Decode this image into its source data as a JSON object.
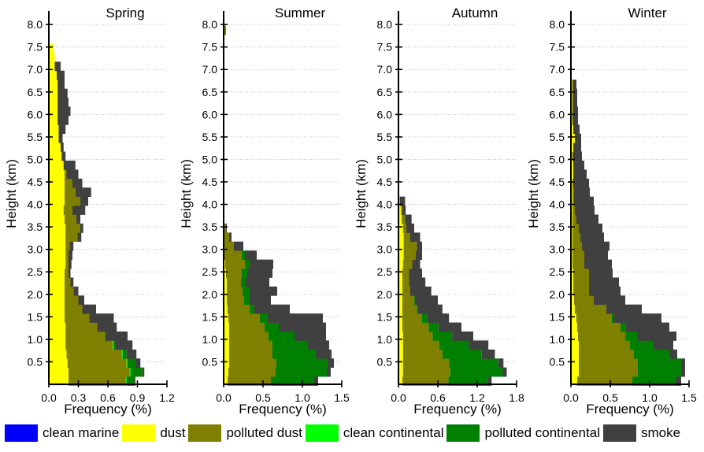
{
  "chart_data": {
    "type": "area",
    "stack_order": [
      "clean marine",
      "dust",
      "polluted dust",
      "clean continental",
      "polluted continental",
      "smoke"
    ],
    "ylabel": "Height (km)",
    "xlabel": "Frequency (%)",
    "ylim": [
      0,
      8.3
    ],
    "yticks": [
      "0.5",
      "1.0",
      "1.5",
      "2.0",
      "2.5",
      "3.0",
      "3.5",
      "4.0",
      "4.5",
      "5.0",
      "5.5",
      "6.0",
      "6.5",
      "7.0",
      "7.5",
      "8.0"
    ],
    "grid": "dotted horizontal at y ticks",
    "legend_position": "bottom",
    "legend": [
      {
        "name": "clean marine",
        "color": "#0000ff"
      },
      {
        "name": "dust",
        "color": "#ffff00"
      },
      {
        "name": "polluted dust",
        "color": "#808000"
      },
      {
        "name": "clean continental",
        "color": "#00ff00"
      },
      {
        "name": "polluted continental",
        "color": "#008000"
      },
      {
        "name": "smoke",
        "color": "#404040"
      }
    ],
    "panels": [
      {
        "title": "Spring",
        "xlim": [
          0,
          1.2
        ],
        "xticks": [
          "0.0",
          "0.3",
          "0.6",
          "0.9",
          "1.2"
        ],
        "height": [
          0.1,
          0.3,
          0.5,
          0.7,
          0.9,
          1.1,
          1.3,
          1.5,
          1.7,
          1.9,
          2.1,
          2.3,
          2.5,
          2.7,
          2.9,
          3.1,
          3.3,
          3.5,
          3.7,
          3.9,
          4.1,
          4.3,
          4.5,
          4.7,
          4.9,
          5.1,
          5.3,
          5.5,
          5.7,
          5.9,
          6.1,
          6.3,
          6.5,
          6.7,
          6.9,
          7.1,
          7.3,
          7.5
        ],
        "series": [
          {
            "name": "dust",
            "values": [
              0.2,
              0.2,
              0.19,
              0.18,
              0.17,
              0.17,
              0.17,
              0.16,
              0.16,
              0.16,
              0.16,
              0.16,
              0.16,
              0.17,
              0.17,
              0.17,
              0.17,
              0.17,
              0.16,
              0.15,
              0.16,
              0.16,
              0.16,
              0.16,
              0.15,
              0.13,
              0.12,
              0.1,
              0.1,
              0.09,
              0.09,
              0.09,
              0.09,
              0.09,
              0.08,
              0.06,
              0.06,
              0.05
            ]
          },
          {
            "name": "polluted dust",
            "values": [
              0.58,
              0.62,
              0.6,
              0.56,
              0.48,
              0.4,
              0.32,
              0.25,
              0.18,
              0.14,
              0.09,
              0.06,
              0.04,
              0.03,
              0.03,
              0.04,
              0.12,
              0.15,
              0.12,
              0.09,
              0.16,
              0.11,
              0.08,
              0.02,
              0.0,
              0.0,
              0.0,
              0.0,
              0.0,
              0.0,
              0.0,
              0.0,
              0.0,
              0.0,
              0.0,
              0.0,
              0.0,
              0.0
            ]
          },
          {
            "name": "clean continental",
            "values": [
              0.01,
              0.01,
              0.01,
              0.01,
              0.01,
              0.0,
              0.0,
              0.0,
              0.0,
              0.0,
              0.0,
              0.0,
              0.0,
              0.0,
              0.0,
              0.0,
              0.0,
              0.0,
              0.0,
              0.0,
              0.0,
              0.0,
              0.0,
              0.0,
              0.0,
              0.0,
              0.0,
              0.0,
              0.0,
              0.0,
              0.0,
              0.0,
              0.0,
              0.0,
              0.0,
              0.0,
              0.0,
              0.0
            ]
          },
          {
            "name": "polluted continental",
            "values": [
              0.08,
              0.12,
              0.08,
              0.04,
              0.02,
              0.01,
              0.0,
              0.0,
              0.0,
              0.0,
              0.0,
              0.0,
              0.0,
              0.0,
              0.0,
              0.0,
              0.0,
              0.0,
              0.0,
              0.0,
              0.0,
              0.0,
              0.0,
              0.0,
              0.0,
              0.0,
              0.0,
              0.0,
              0.0,
              0.0,
              0.0,
              0.0,
              0.0,
              0.0,
              0.0,
              0.0,
              0.0,
              0.0
            ]
          },
          {
            "name": "smoke",
            "values": [
              0.01,
              0.02,
              0.05,
              0.1,
              0.17,
              0.22,
              0.2,
              0.25,
              0.14,
              0.06,
              0.05,
              0.03,
              0.02,
              0.03,
              0.04,
              0.04,
              0.04,
              0.03,
              0.04,
              0.13,
              0.08,
              0.16,
              0.1,
              0.12,
              0.12,
              0.04,
              0.03,
              0.04,
              0.07,
              0.11,
              0.13,
              0.11,
              0.1,
              0.07,
              0.08,
              0.06,
              0.0,
              0.0
            ]
          }
        ]
      },
      {
        "title": "Summer",
        "xlim": [
          0,
          1.5
        ],
        "xticks": [
          "0.0",
          "0.5",
          "1.0",
          "1.5"
        ],
        "height": [
          0.1,
          0.3,
          0.5,
          0.7,
          0.9,
          1.1,
          1.3,
          1.5,
          1.7,
          1.9,
          2.1,
          2.3,
          2.5,
          2.7,
          2.9,
          3.1,
          3.3,
          3.5,
          7.9
        ],
        "series": [
          {
            "name": "dust",
            "values": [
              0.05,
              0.06,
              0.07,
              0.07,
              0.07,
              0.07,
              0.07,
              0.06,
              0.05,
              0.04,
              0.04,
              0.04,
              0.03,
              0.02,
              0.01,
              0.01,
              0.01,
              0.01,
              0.01
            ]
          },
          {
            "name": "polluted dust",
            "values": [
              0.55,
              0.6,
              0.6,
              0.55,
              0.55,
              0.5,
              0.45,
              0.4,
              0.28,
              0.22,
              0.2,
              0.18,
              0.2,
              0.25,
              0.22,
              0.12,
              0.06,
              0.02,
              0.02
            ]
          },
          {
            "name": "clean continental",
            "values": [
              0.0,
              0.0,
              0.0,
              0.0,
              0.0,
              0.0,
              0.0,
              0.0,
              0.0,
              0.0,
              0.0,
              0.0,
              0.0,
              0.0,
              0.0,
              0.0,
              0.0,
              0.0,
              0.0
            ]
          },
          {
            "name": "polluted continental",
            "values": [
              0.55,
              0.65,
              0.65,
              0.55,
              0.45,
              0.33,
              0.18,
              0.1,
              0.06,
              0.07,
              0.09,
              0.06,
              0.07,
              0.06,
              0.04,
              0.0,
              0.0,
              0.0,
              0.0
            ]
          },
          {
            "name": "smoke",
            "values": [
              0.05,
              0.05,
              0.08,
              0.2,
              0.27,
              0.4,
              0.6,
              0.7,
              0.45,
              0.27,
              0.35,
              0.3,
              0.32,
              0.3,
              0.15,
              0.12,
              0.03,
              0.01,
              0.0
            ]
          }
        ]
      },
      {
        "title": "Autumn",
        "xlim": [
          0,
          1.8
        ],
        "xticks": [
          "0.0",
          "0.6",
          "1.2",
          "1.8"
        ],
        "height": [
          0.1,
          0.3,
          0.5,
          0.7,
          0.9,
          1.1,
          1.3,
          1.5,
          1.7,
          1.9,
          2.1,
          2.3,
          2.5,
          2.7,
          2.9,
          3.1,
          3.3,
          3.5,
          3.7,
          3.9,
          4.1
        ],
        "series": [
          {
            "name": "dust",
            "values": [
              0.06,
              0.07,
              0.07,
              0.07,
              0.07,
              0.07,
              0.06,
              0.06,
              0.06,
              0.06,
              0.06,
              0.06,
              0.06,
              0.07,
              0.08,
              0.08,
              0.08,
              0.07,
              0.05,
              0.04,
              0.02
            ]
          },
          {
            "name": "polluted dust",
            "values": [
              0.7,
              0.72,
              0.7,
              0.6,
              0.55,
              0.45,
              0.4,
              0.3,
              0.22,
              0.18,
              0.12,
              0.1,
              0.1,
              0.14,
              0.18,
              0.2,
              0.1,
              0.05,
              0.05,
              0.02,
              0.0
            ]
          },
          {
            "name": "clean continental",
            "values": [
              0.0,
              0.0,
              0.0,
              0.0,
              0.0,
              0.0,
              0.0,
              0.0,
              0.0,
              0.0,
              0.0,
              0.0,
              0.0,
              0.0,
              0.0,
              0.0,
              0.0,
              0.0,
              0.0,
              0.0,
              0.0
            ]
          },
          {
            "name": "polluted continental",
            "values": [
              0.6,
              0.8,
              0.75,
              0.6,
              0.45,
              0.3,
              0.15,
              0.08,
              0.02,
              0.01,
              0.0,
              0.0,
              0.0,
              0.0,
              0.0,
              0.0,
              0.0,
              0.0,
              0.0,
              0.0,
              0.0
            ]
          },
          {
            "name": "smoke",
            "values": [
              0.06,
              0.06,
              0.08,
              0.2,
              0.3,
              0.32,
              0.35,
              0.33,
              0.37,
              0.35,
              0.32,
              0.25,
              0.2,
              0.12,
              0.1,
              0.08,
              0.15,
              0.12,
              0.1,
              0.05,
              0.08
            ]
          }
        ]
      },
      {
        "title": "Winter",
        "xlim": [
          0,
          1.5
        ],
        "xticks": [
          "0.0",
          "0.5",
          "1.0",
          "1.5"
        ],
        "height": [
          0.1,
          0.3,
          0.5,
          0.7,
          0.9,
          1.1,
          1.3,
          1.5,
          1.7,
          1.9,
          2.1,
          2.3,
          2.5,
          2.7,
          2.9,
          3.1,
          3.3,
          3.5,
          3.7,
          3.9,
          4.1,
          4.3,
          4.5,
          4.7,
          4.9,
          5.1,
          5.3,
          5.5,
          5.7,
          5.9,
          6.1,
          6.3,
          6.5,
          6.7
        ],
        "series": [
          {
            "name": "dust",
            "values": [
              0.08,
              0.1,
              0.1,
              0.1,
              0.1,
              0.09,
              0.08,
              0.07,
              0.05,
              0.04,
              0.03,
              0.03,
              0.03,
              0.02,
              0.02,
              0.02,
              0.02,
              0.02,
              0.02,
              0.02,
              0.02,
              0.02,
              0.02,
              0.03,
              0.03,
              0.02,
              0.03,
              0.05,
              0.03,
              0.02,
              0.02,
              0.02,
              0.02,
              0.02
            ]
          },
          {
            "name": "polluted dust",
            "values": [
              0.7,
              0.75,
              0.75,
              0.7,
              0.65,
              0.6,
              0.55,
              0.45,
              0.4,
              0.25,
              0.2,
              0.2,
              0.2,
              0.15,
              0.15,
              0.12,
              0.1,
              0.08,
              0.05,
              0.03,
              0.02,
              0.02,
              0.01,
              0.0,
              0.0,
              0.0,
              0.0,
              0.0,
              0.0,
              0.0,
              0.0,
              0.0,
              0.0,
              0.0
            ]
          },
          {
            "name": "clean continental",
            "values": [
              0.0,
              0.0,
              0.0,
              0.0,
              0.0,
              0.0,
              0.0,
              0.0,
              0.0,
              0.0,
              0.0,
              0.0,
              0.0,
              0.0,
              0.0,
              0.0,
              0.0,
              0.0,
              0.0,
              0.0,
              0.0,
              0.0,
              0.0,
              0.0,
              0.0,
              0.0,
              0.0,
              0.0,
              0.0,
              0.0,
              0.0,
              0.0,
              0.0,
              0.0
            ]
          },
          {
            "name": "polluted continental",
            "values": [
              0.55,
              0.55,
              0.55,
              0.45,
              0.3,
              0.15,
              0.07,
              0.03,
              0.0,
              0.0,
              0.0,
              0.0,
              0.0,
              0.0,
              0.0,
              0.0,
              0.0,
              0.0,
              0.0,
              0.0,
              0.0,
              0.0,
              0.0,
              0.0,
              0.0,
              0.0,
              0.0,
              0.0,
              0.0,
              0.0,
              0.0,
              0.0,
              0.0,
              0.0
            ]
          },
          {
            "name": "smoke",
            "values": [
              0.07,
              0.05,
              0.05,
              0.1,
              0.25,
              0.5,
              0.55,
              0.6,
              0.45,
              0.4,
              0.4,
              0.38,
              0.3,
              0.35,
              0.3,
              0.35,
              0.3,
              0.3,
              0.28,
              0.25,
              0.25,
              0.2,
              0.2,
              0.17,
              0.14,
              0.12,
              0.1,
              0.08,
              0.08,
              0.07,
              0.07,
              0.06,
              0.06,
              0.05
            ]
          }
        ]
      }
    ]
  }
}
